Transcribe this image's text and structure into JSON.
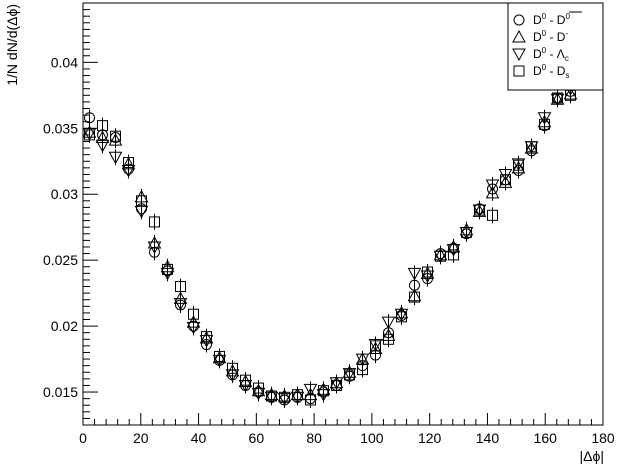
{
  "chart_data": {
    "type": "scatter",
    "title": "",
    "xlabel": "|Δϕ|",
    "ylabel": "1/N dN/d(Δϕ)",
    "xlim": [
      0,
      180
    ],
    "ylim": [
      0.0125,
      0.0445
    ],
    "x_ticks": [
      0,
      20,
      40,
      60,
      80,
      100,
      120,
      140,
      160,
      180
    ],
    "y_ticks": [
      0.015,
      0.02,
      0.025,
      0.03,
      0.035,
      0.04
    ],
    "grid": false,
    "legend_position": "top-right",
    "series": [
      {
        "name": "D0 - D0bar",
        "marker": "circle",
        "points": [
          [
            2.25,
            0.0358
          ],
          [
            6.75,
            0.0345
          ],
          [
            11.25,
            0.0343
          ],
          [
            15.75,
            0.0319
          ],
          [
            20.25,
            0.0289
          ],
          [
            24.75,
            0.0256
          ],
          [
            29.25,
            0.0242
          ],
          [
            33.75,
            0.0216
          ],
          [
            38.25,
            0.02
          ],
          [
            42.75,
            0.0186
          ],
          [
            47.25,
            0.0174
          ],
          [
            51.75,
            0.0163
          ],
          [
            56.25,
            0.0155
          ],
          [
            60.75,
            0.015
          ],
          [
            65.25,
            0.0146
          ],
          [
            69.75,
            0.0144
          ],
          [
            74.25,
            0.0146
          ],
          [
            78.75,
            0.0145
          ],
          [
            83.25,
            0.015
          ],
          [
            87.75,
            0.0155
          ],
          [
            92.25,
            0.0162
          ],
          [
            96.75,
            0.017
          ],
          [
            101.25,
            0.0178
          ],
          [
            105.75,
            0.0195
          ],
          [
            110.25,
            0.0208
          ],
          [
            114.75,
            0.0231
          ],
          [
            119.25,
            0.0236
          ],
          [
            123.75,
            0.0255
          ],
          [
            128.25,
            0.0259
          ],
          [
            132.75,
            0.027
          ],
          [
            137.25,
            0.0289
          ],
          [
            141.75,
            0.0304
          ],
          [
            146.25,
            0.0311
          ],
          [
            150.75,
            0.0318
          ],
          [
            155.25,
            0.0333
          ],
          [
            159.75,
            0.0352
          ],
          [
            164.25,
            0.0373
          ],
          [
            168.75,
            0.0378
          ]
        ]
      },
      {
        "name": "D0 - D-",
        "marker": "triangle-up",
        "points": [
          [
            2.25,
            0.0347
          ],
          [
            6.75,
            0.0343
          ],
          [
            11.25,
            0.0341
          ],
          [
            15.75,
            0.0323
          ],
          [
            20.25,
            0.0298
          ],
          [
            24.75,
            0.0263
          ],
          [
            29.25,
            0.0245
          ],
          [
            33.75,
            0.0221
          ],
          [
            38.25,
            0.0203
          ],
          [
            42.75,
            0.0191
          ],
          [
            47.25,
            0.0176
          ],
          [
            51.75,
            0.0166
          ],
          [
            56.25,
            0.0158
          ],
          [
            60.75,
            0.0151
          ],
          [
            65.25,
            0.0148
          ],
          [
            69.75,
            0.0147
          ],
          [
            74.25,
            0.0148
          ],
          [
            78.75,
            0.0148
          ],
          [
            83.25,
            0.0152
          ],
          [
            87.75,
            0.0157
          ],
          [
            92.25,
            0.0165
          ],
          [
            96.75,
            0.0175
          ],
          [
            101.25,
            0.0183
          ],
          [
            105.75,
            0.0193
          ],
          [
            110.25,
            0.021
          ],
          [
            114.75,
            0.0223
          ],
          [
            119.25,
            0.024
          ],
          [
            123.75,
            0.0254
          ],
          [
            128.25,
            0.026
          ],
          [
            132.75,
            0.0273
          ],
          [
            137.25,
            0.0287
          ],
          [
            141.75,
            0.0301
          ],
          [
            146.25,
            0.0309
          ],
          [
            150.75,
            0.032
          ],
          [
            155.25,
            0.0335
          ],
          [
            159.75,
            0.0355
          ],
          [
            164.25,
            0.0372
          ],
          [
            168.75,
            0.0376
          ]
        ]
      },
      {
        "name": "D0 - Λc",
        "marker": "triangle-down",
        "points": [
          [
            2.25,
            0.0346
          ],
          [
            6.75,
            0.0337
          ],
          [
            11.25,
            0.0328
          ],
          [
            15.75,
            0.0318
          ],
          [
            20.25,
            0.0287
          ],
          [
            24.75,
            0.026
          ],
          [
            29.25,
            0.024
          ],
          [
            33.75,
            0.0217
          ],
          [
            38.25,
            0.0199
          ],
          [
            42.75,
            0.0189
          ],
          [
            47.25,
            0.0174
          ],
          [
            51.75,
            0.0163
          ],
          [
            56.25,
            0.0155
          ],
          [
            60.75,
            0.0149
          ],
          [
            65.25,
            0.0146
          ],
          [
            69.75,
            0.0145
          ],
          [
            74.25,
            0.0146
          ],
          [
            78.75,
            0.0152
          ],
          [
            83.25,
            0.0148
          ],
          [
            87.75,
            0.0157
          ],
          [
            92.25,
            0.0164
          ],
          [
            96.75,
            0.0175
          ],
          [
            101.25,
            0.0186
          ],
          [
            105.75,
            0.0203
          ],
          [
            110.25,
            0.0209
          ],
          [
            114.75,
            0.024
          ],
          [
            119.25,
            0.0238
          ],
          [
            123.75,
            0.0253
          ],
          [
            128.25,
            0.0258
          ],
          [
            132.75,
            0.0271
          ],
          [
            137.25,
            0.0288
          ],
          [
            141.75,
            0.0307
          ],
          [
            146.25,
            0.0315
          ],
          [
            150.75,
            0.0323
          ],
          [
            155.25,
            0.0336
          ],
          [
            159.75,
            0.0358
          ],
          [
            164.25,
            0.0372
          ],
          [
            168.75,
            0.038
          ]
        ]
      },
      {
        "name": "D0 - Ds",
        "marker": "square",
        "points": [
          [
            2.25,
            0.0345
          ],
          [
            6.75,
            0.0352
          ],
          [
            11.25,
            0.0344
          ],
          [
            15.75,
            0.0324
          ],
          [
            20.25,
            0.0295
          ],
          [
            24.75,
            0.0279
          ],
          [
            29.25,
            0.0243
          ],
          [
            33.75,
            0.023
          ],
          [
            38.25,
            0.0209
          ],
          [
            42.75,
            0.0192
          ],
          [
            47.25,
            0.0177
          ],
          [
            51.75,
            0.0168
          ],
          [
            56.25,
            0.0159
          ],
          [
            60.75,
            0.0153
          ],
          [
            65.25,
            0.0147
          ],
          [
            69.75,
            0.0146
          ],
          [
            74.25,
            0.0148
          ],
          [
            78.75,
            0.0144
          ],
          [
            83.25,
            0.0151
          ],
          [
            87.75,
            0.0155
          ],
          [
            92.25,
            0.0163
          ],
          [
            96.75,
            0.0167
          ],
          [
            101.25,
            0.0185
          ],
          [
            105.75,
            0.019
          ],
          [
            110.25,
            0.0207
          ],
          [
            114.75,
            0.0222
          ],
          [
            119.25,
            0.0241
          ],
          [
            123.75,
            0.0253
          ],
          [
            128.25,
            0.0254
          ],
          [
            132.75,
            0.0271
          ],
          [
            137.25,
            0.0288
          ],
          [
            141.75,
            0.0284
          ],
          [
            146.25,
            0.0311
          ],
          [
            150.75,
            0.0322
          ],
          [
            155.25,
            0.0336
          ],
          [
            159.75,
            0.0353
          ],
          [
            164.25,
            0.0373
          ],
          [
            168.75,
            0.0375
          ]
        ]
      }
    ]
  },
  "legend": {
    "entries": [
      {
        "prefix": "D",
        "prefix_sup": "0",
        "sep": " - ",
        "main": "D",
        "sup": "0",
        "sub": "",
        "overline": true
      },
      {
        "prefix": "D",
        "prefix_sup": "0",
        "sep": " - ",
        "main": "D",
        "sup": "-",
        "sub": "",
        "overline": false
      },
      {
        "prefix": "D",
        "prefix_sup": "0",
        "sep": " - ",
        "main": "Λ",
        "sup": "",
        "sub": "c",
        "overline": false
      },
      {
        "prefix": "D",
        "prefix_sup": "0",
        "sep": " - ",
        "main": "D",
        "sup": "",
        "sub": "s",
        "overline": false
      }
    ]
  }
}
